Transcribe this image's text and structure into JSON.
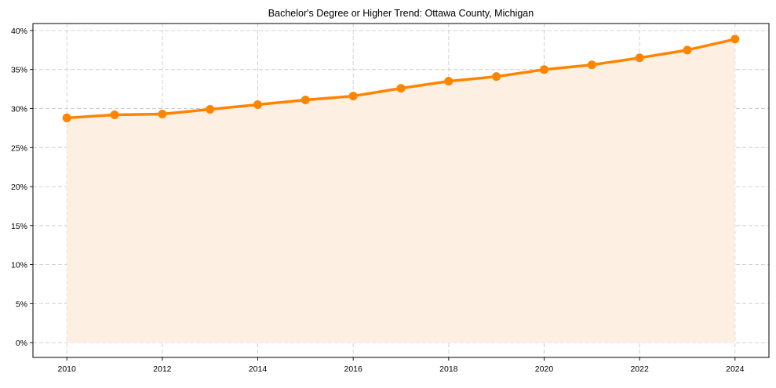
{
  "chart_data": {
    "type": "area",
    "title": "Bachelor's Degree or Higher Trend: Ottawa County, Michigan",
    "xlabel": "",
    "ylabel": "",
    "x": [
      2010,
      2011,
      2012,
      2013,
      2014,
      2015,
      2016,
      2017,
      2018,
      2019,
      2020,
      2021,
      2022,
      2023,
      2024
    ],
    "series": [
      {
        "name": "Bachelor's Degree or Higher",
        "values": [
          28.8,
          29.2,
          29.3,
          29.9,
          30.5,
          31.1,
          31.6,
          32.6,
          33.5,
          34.1,
          35.0,
          35.6,
          36.5,
          37.5,
          38.9
        ],
        "color": "#ff8400",
        "fill": "#fdf0e3"
      }
    ],
    "xticks": [
      2010,
      2012,
      2014,
      2016,
      2018,
      2020,
      2022,
      2024
    ],
    "xtick_labels": [
      "2010",
      "2012",
      "2014",
      "2016",
      "2018",
      "2020",
      "2022",
      "2024"
    ],
    "yticks": [
      0,
      5,
      10,
      15,
      20,
      25,
      30,
      35,
      40
    ],
    "ytick_labels": [
      "0%",
      "5%",
      "10%",
      "15%",
      "20%",
      "25%",
      "30%",
      "35%",
      "40%"
    ],
    "xlim": [
      2009.29,
      2024.71
    ],
    "ylim": [
      -1.9,
      40.9
    ],
    "grid": true
  }
}
